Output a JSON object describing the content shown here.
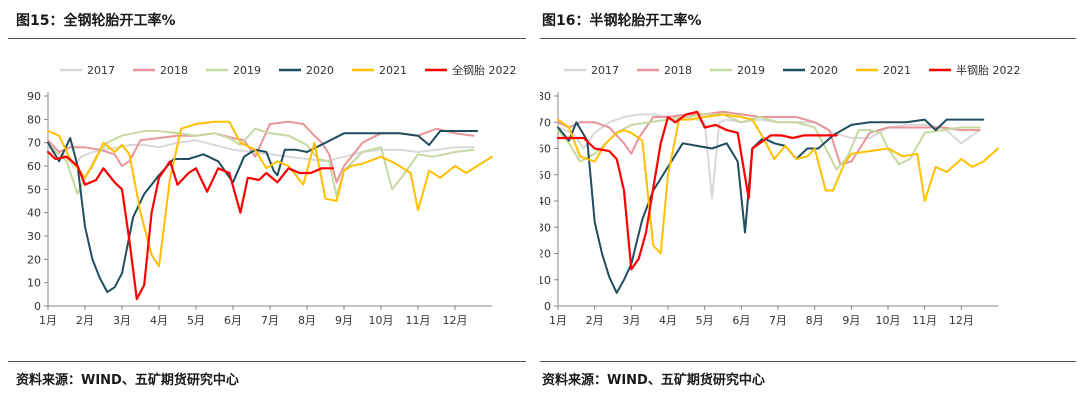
{
  "charts": [
    {
      "figure_title": "图15：全钢轮胎开工率%",
      "source": "资料来源：WIND、五矿期货研究中心",
      "chart_data": {
        "type": "line",
        "title": "图15：全钢轮胎开工率%",
        "xlabel": "",
        "ylabel": "",
        "ylim": [
          0,
          90
        ],
        "yticks": [
          0,
          10,
          20,
          30,
          40,
          50,
          60,
          70,
          80,
          90
        ],
        "x_range": [
          1,
          13
        ],
        "x_ticks": [
          "1月",
          "2月",
          "3月",
          "4月",
          "5月",
          "6月",
          "7月",
          "8月",
          "9月",
          "10月",
          "11月",
          "12月"
        ],
        "grid": false,
        "legend_position": "top",
        "series": [
          {
            "name": "2017",
            "color": "#d9d9d9",
            "x": [
              1.0,
              1.4,
              1.7,
              1.9,
              2.2,
              2.5,
              2.9,
              3.2,
              3.6,
              4.0,
              4.5,
              5.0,
              5.5,
              6.0,
              6.5,
              7.0,
              7.5,
              8.0,
              8.5,
              9.0,
              9.5,
              10.0,
              10.5,
              11.0,
              11.5,
              12.0,
              12.5
            ],
            "values": [
              66,
              65,
              60,
              64,
              66,
              67,
              68,
              69,
              69,
              68,
              70,
              71,
              69,
              67,
              66,
              65,
              64,
              63,
              62,
              64,
              66,
              67,
              67,
              66,
              67,
              68,
              68
            ]
          },
          {
            "name": "2018",
            "color": "#e8959b",
            "x": [
              1.0,
              1.3,
              1.6,
              2.0,
              2.4,
              2.8,
              3.0,
              3.2,
              3.5,
              4.0,
              4.5,
              5.0,
              5.5,
              6.0,
              6.3,
              6.6,
              7.0,
              7.5,
              7.9,
              8.2,
              8.4,
              8.6,
              8.8,
              9.0,
              9.5,
              10.0,
              10.5,
              11.0,
              11.5,
              12.0,
              12.5
            ],
            "values": [
              71,
              66,
              68,
              68,
              67,
              65,
              60,
              62,
              71,
              72,
              73,
              73,
              74,
              72,
              71,
              64,
              78,
              79,
              78,
              73,
              70,
              65,
              53,
              60,
              70,
              74,
              74,
              73,
              76,
              74,
              73
            ]
          },
          {
            "name": "2019",
            "color": "#c5d9a0",
            "x": [
              1.0,
              1.3,
              1.5,
              1.8,
              2.0,
              2.3,
              2.6,
              3.0,
              3.3,
              3.6,
              4.0,
              4.5,
              5.0,
              5.5,
              5.9,
              6.2,
              6.6,
              7.0,
              7.5,
              8.0,
              8.3,
              8.6,
              8.8,
              9.0,
              9.5,
              10.0,
              10.3,
              10.6,
              11.0,
              11.4,
              12.0,
              12.5
            ],
            "values": [
              69,
              65,
              62,
              48,
              55,
              64,
              70,
              73,
              74,
              75,
              75,
              74,
              73,
              74,
              72,
              69,
              76,
              74,
              73,
              69,
              63,
              62,
              47,
              58,
              66,
              68,
              50,
              56,
              65,
              64,
              66,
              67
            ]
          },
          {
            "name": "2020",
            "color": "#1f4e5f",
            "x": [
              1.0,
              1.3,
              1.6,
              1.8,
              2.0,
              2.2,
              2.4,
              2.6,
              2.8,
              3.0,
              3.3,
              3.6,
              4.0,
              4.4,
              4.8,
              5.2,
              5.6,
              6.0,
              6.3,
              6.6,
              6.9,
              7.1,
              7.2,
              7.4,
              7.7,
              8.0,
              8.5,
              9.0,
              9.5,
              10.0,
              10.5,
              11.0,
              11.3,
              11.6,
              12.0,
              12.3,
              12.6
            ],
            "values": [
              70,
              62,
              72,
              60,
              34,
              20,
              12,
              6,
              8,
              14,
              38,
              48,
              56,
              63,
              63,
              65,
              62,
              53,
              64,
              67,
              66,
              58,
              56,
              67,
              67,
              66,
              70,
              74,
              74,
              74,
              74,
              73,
              69,
              75,
              75,
              75,
              75
            ]
          },
          {
            "name": "2021",
            "color": "#ffc000",
            "x": [
              1.0,
              1.3,
              1.6,
              2.0,
              2.2,
              2.5,
              2.8,
              3.0,
              3.2,
              3.5,
              3.8,
              4.0,
              4.3,
              4.6,
              5.0,
              5.5,
              5.9,
              6.2,
              6.6,
              6.9,
              7.2,
              7.5,
              7.9,
              8.2,
              8.5,
              8.8,
              9.0,
              9.2,
              9.5,
              10.0,
              10.4,
              10.8,
              11.0,
              11.3,
              11.6,
              12.0,
              12.3,
              12.6,
              13.0
            ],
            "values": [
              75,
              73,
              63,
              55,
              60,
              70,
              66,
              69,
              65,
              40,
              22,
              17,
              55,
              76,
              78,
              79,
              79,
              70,
              67,
              59,
              62,
              60,
              52,
              70,
              46,
              45,
              58,
              60,
              61,
              64,
              61,
              57,
              41,
              58,
              55,
              60,
              57,
              60,
              64
            ]
          },
          {
            "name": "全钢胎 2022",
            "color": "#ff0000",
            "x": [
              1.0,
              1.2,
              1.5,
              1.8,
              2.0,
              2.3,
              2.5,
              2.8,
              3.0,
              3.2,
              3.4,
              3.6,
              3.8,
              4.0,
              4.3,
              4.5,
              4.8,
              5.0,
              5.3,
              5.6,
              5.9,
              6.2,
              6.4,
              6.7,
              6.9,
              7.2,
              7.5,
              7.8,
              8.1,
              8.4,
              8.7
            ],
            "values": [
              66,
              63,
              64,
              60,
              52,
              54,
              59,
              53,
              50,
              28,
              3,
              9,
              40,
              55,
              62,
              52,
              57,
              59,
              49,
              59,
              57,
              40,
              55,
              54,
              57,
              53,
              59,
              57,
              57,
              59,
              59
            ]
          }
        ]
      }
    },
    {
      "figure_title": "图16：半钢轮胎开工率%",
      "source": "资料来源：WIND、五矿期货研究中心",
      "chart_data": {
        "type": "line",
        "title": "图16：半钢轮胎开工率%",
        "xlabel": "",
        "ylabel": "",
        "ylim": [
          0,
          80
        ],
        "yticks": [
          0,
          10,
          20,
          30,
          40,
          50,
          60,
          70,
          80
        ],
        "x_range": [
          1,
          13
        ],
        "x_ticks": [
          "1月",
          "2月",
          "3月",
          "4月",
          "5月",
          "6月",
          "7月",
          "8月",
          "9月",
          "10月",
          "11月",
          "12月"
        ],
        "grid": false,
        "legend_position": "top",
        "series": [
          {
            "name": "2017",
            "color": "#d9d9d9",
            "x": [
              1.0,
              1.4,
              1.7,
              2.0,
              2.4,
              2.8,
              3.2,
              3.6,
              4.0,
              4.5,
              5.0,
              5.2,
              5.4,
              5.6,
              6.0,
              6.5,
              7.0,
              7.5,
              8.0,
              8.5,
              9.0,
              9.5,
              10.0,
              10.5,
              11.0,
              11.5,
              12.0,
              12.5
            ],
            "values": [
              68,
              66,
              60,
              66,
              70,
              72,
              73,
              73,
              72,
              72,
              70,
              41,
              70,
              71,
              70,
              71,
              70,
              70,
              70,
              66,
              64,
              64,
              68,
              69,
              69,
              68,
              62,
              67
            ]
          },
          {
            "name": "2018",
            "color": "#e8959b",
            "x": [
              1.0,
              1.3,
              1.6,
              2.0,
              2.4,
              2.8,
              3.0,
              3.2,
              3.6,
              4.0,
              4.5,
              5.0,
              5.5,
              6.0,
              6.5,
              7.0,
              7.5,
              8.0,
              8.4,
              8.7,
              9.0,
              9.5,
              10.0,
              10.5,
              11.0,
              11.5,
              12.0,
              12.5
            ],
            "values": [
              70,
              68,
              70,
              70,
              68,
              62,
              58,
              64,
              72,
              72,
              73,
              73,
              74,
              73,
              72,
              72,
              72,
              70,
              67,
              54,
              55,
              66,
              68,
              68,
              68,
              68,
              67,
              67
            ]
          },
          {
            "name": "2019",
            "color": "#c5d9a0",
            "x": [
              1.0,
              1.3,
              1.6,
              2.0,
              2.3,
              2.6,
              3.0,
              3.5,
              4.0,
              4.5,
              5.0,
              5.5,
              6.0,
              6.5,
              7.0,
              7.5,
              8.0,
              8.3,
              8.6,
              8.9,
              9.2,
              9.5,
              9.8,
              10.0,
              10.3,
              10.6,
              11.0,
              11.5,
              12.0,
              12.5
            ],
            "values": [
              67,
              62,
              55,
              58,
              62,
              66,
              69,
              70,
              71,
              72,
              73,
              73,
              70,
              72,
              70,
              70,
              68,
              60,
              52,
              57,
              67,
              67,
              66,
              60,
              54,
              56,
              66,
              67,
              68,
              68
            ]
          },
          {
            "name": "2020",
            "color": "#1f4e5f",
            "x": [
              1.0,
              1.3,
              1.5,
              1.8,
              2.0,
              2.2,
              2.4,
              2.6,
              2.8,
              3.0,
              3.3,
              3.6,
              4.0,
              4.4,
              4.8,
              5.2,
              5.6,
              5.9,
              6.1,
              6.3,
              6.6,
              6.9,
              7.2,
              7.5,
              7.8,
              8.1,
              8.5,
              9.0,
              9.5,
              10.0,
              10.5,
              11.0,
              11.3,
              11.6,
              12.0,
              12.6
            ],
            "values": [
              68,
              63,
              70,
              63,
              32,
              20,
              11,
              5,
              10,
              16,
              33,
              44,
              53,
              62,
              61,
              60,
              62,
              55,
              28,
              60,
              64,
              62,
              61,
              56,
              60,
              60,
              65,
              69,
              70,
              70,
              70,
              71,
              67,
              71,
              71,
              71
            ]
          },
          {
            "name": "2021",
            "color": "#ffc000",
            "x": [
              1.0,
              1.3,
              1.6,
              2.0,
              2.3,
              2.6,
              2.8,
              3.0,
              3.3,
              3.6,
              3.8,
              4.0,
              4.3,
              4.6,
              5.0,
              5.5,
              6.0,
              6.3,
              6.6,
              6.9,
              7.2,
              7.5,
              7.8,
              8.0,
              8.3,
              8.5,
              8.8,
              9.0,
              9.5,
              10.0,
              10.4,
              10.8,
              11.0,
              11.3,
              11.6,
              12.0,
              12.3,
              12.6,
              13.0
            ],
            "values": [
              71,
              68,
              57,
              55,
              62,
              66,
              67,
              66,
              63,
              23,
              20,
              50,
              71,
              71,
              72,
              73,
              72,
              71,
              64,
              56,
              61,
              56,
              57,
              60,
              44,
              44,
              54,
              58,
              59,
              60,
              57,
              58,
              40,
              53,
              51,
              56,
              53,
              55,
              60
            ]
          },
          {
            "name": "半钢胎 2022",
            "color": "#ff0000",
            "x": [
              1.0,
              1.4,
              1.7,
              2.0,
              2.4,
              2.6,
              2.8,
              3.0,
              3.2,
              3.4,
              3.6,
              3.8,
              4.0,
              4.2,
              4.5,
              4.8,
              5.0,
              5.3,
              5.6,
              5.9,
              6.2,
              6.3,
              6.5,
              6.8,
              7.1,
              7.4,
              7.7,
              8.0,
              8.3,
              8.6
            ],
            "values": [
              64,
              64,
              64,
              60,
              59,
              56,
              44,
              14,
              18,
              28,
              45,
              62,
              72,
              70,
              73,
              74,
              68,
              69,
              67,
              66,
              41,
              60,
              62,
              65,
              65,
              64,
              65,
              65,
              65,
              65
            ]
          }
        ]
      }
    }
  ]
}
